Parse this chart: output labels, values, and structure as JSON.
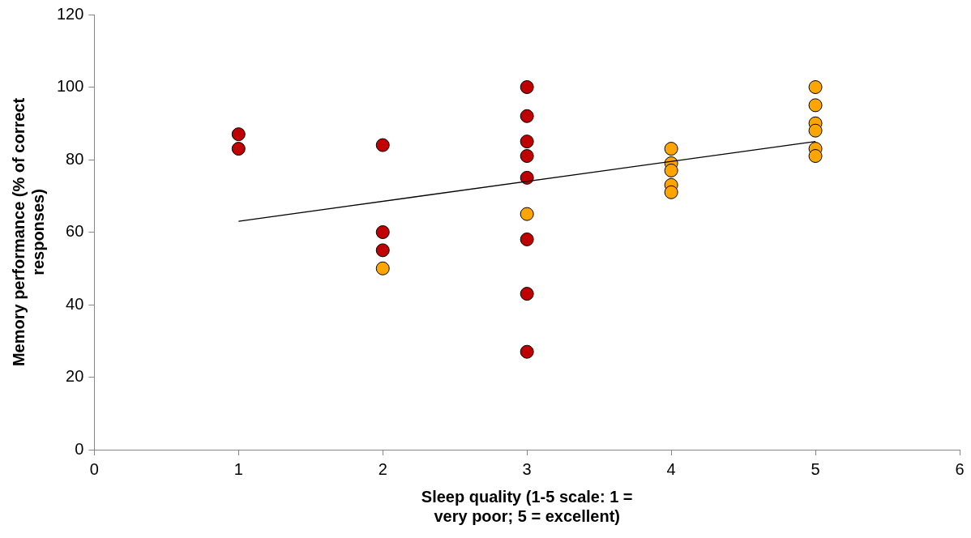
{
  "chart_data": {
    "type": "scatter",
    "xlabel": "Sleep quality (1-5 scale: 1 = very poor; 5 = excellent)",
    "ylabel": "Memory performance (% of correct responses)",
    "xlim": [
      0,
      6
    ],
    "xticks": [
      0,
      1,
      2,
      3,
      4,
      5,
      6
    ],
    "ylim": [
      0,
      120
    ],
    "yticks": [
      0,
      20,
      40,
      60,
      80,
      100,
      120
    ],
    "grid": false,
    "legend": false,
    "marker": "circle",
    "series": [
      {
        "color": "#c00000",
        "x": [
          1,
          1,
          2,
          2,
          2,
          3,
          3,
          3,
          3,
          3,
          3,
          3,
          3
        ],
        "values": [
          87,
          83,
          84,
          60,
          55,
          100,
          92,
          85,
          81,
          75,
          58,
          43,
          27
        ]
      },
      {
        "color": "#ffa500",
        "x": [
          2,
          3,
          4,
          4,
          4,
          4,
          4,
          5,
          5,
          5,
          5,
          5,
          5
        ],
        "values": [
          50,
          65,
          83,
          79,
          77,
          73,
          71,
          100,
          95,
          90,
          88,
          83,
          81
        ]
      },
      {
        "type": "line",
        "color": "#000000",
        "x": [
          1,
          5
        ],
        "values": [
          63,
          85
        ],
        "marker": "none",
        "line_style": "solid"
      }
    ]
  }
}
